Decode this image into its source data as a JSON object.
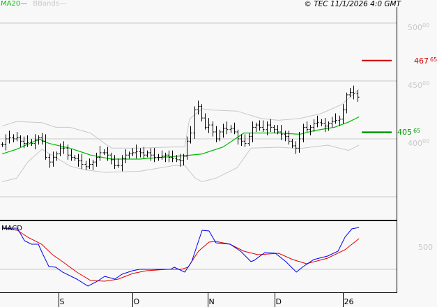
{
  "header": {
    "legend_ma": "MA20",
    "legend_bbands": "BBands",
    "copyright": "© TEC 11/1/2026 4:0 GMT"
  },
  "colors": {
    "ma": "#00bb00",
    "bands": "#c8c8c8",
    "bars": "#000000",
    "resistance": "#cc0000",
    "support": "#009900",
    "macd": "#0000ee",
    "signal": "#dd0000"
  },
  "levels": {
    "resistance": {
      "int": "467",
      "dec": "65",
      "value": 467.65
    },
    "support": {
      "int": "405",
      "dec": "65",
      "value": 405.65
    }
  },
  "macd_panel": {
    "label": "MACD",
    "axis_label": "500"
  },
  "chart_data": {
    "type": "ohlc",
    "price_axis": {
      "ticks": [
        {
          "int": "500",
          "dec": "00",
          "value": 500
        },
        {
          "int": "450",
          "dec": "00",
          "value": 450
        },
        {
          "int": "400",
          "dec": "00",
          "value": 400
        }
      ],
      "gridlines": [
        500,
        450,
        400,
        350
      ],
      "range": [
        325,
        510
      ]
    },
    "x_axis": {
      "labels": [
        {
          "text": "S",
          "bar": 15.6
        },
        {
          "text": "O",
          "bar": 36
        },
        {
          "text": "N",
          "bar": 56.7
        },
        {
          "text": "D",
          "bar": 75.2
        },
        {
          "text": "26",
          "bar": 94
        }
      ]
    },
    "closes": [
      395,
      400,
      401,
      400,
      401,
      398,
      396,
      397,
      396,
      399,
      401,
      398,
      384,
      380,
      384,
      387,
      392,
      392,
      386,
      384,
      383,
      381,
      378,
      376,
      378,
      380,
      384,
      388,
      388,
      386,
      382,
      377,
      377,
      383,
      386,
      387,
      388,
      389,
      388,
      386,
      388,
      386,
      384,
      384,
      385,
      386,
      384,
      383,
      382,
      381,
      385,
      398,
      405,
      425,
      428,
      418,
      410,
      412,
      406,
      400,
      406,
      409,
      408,
      409,
      406,
      400,
      398,
      396,
      402,
      410,
      412,
      410,
      408,
      412,
      410,
      408,
      406,
      404,
      402,
      398,
      394,
      392,
      400,
      410,
      408,
      410,
      413,
      414,
      413,
      411,
      413,
      415,
      416,
      417,
      425,
      438,
      440,
      439,
      436
    ],
    "ma20": [
      [
        0,
        387
      ],
      [
        4,
        391
      ],
      [
        9,
        398
      ],
      [
        10.4,
        399.5
      ],
      [
        13,
        396
      ],
      [
        18.7,
        392
      ],
      [
        24.4,
        386
      ],
      [
        30.2,
        382.5
      ],
      [
        37.9,
        382.5
      ],
      [
        43.7,
        384
      ],
      [
        50.4,
        385.5
      ],
      [
        55.2,
        387
      ],
      [
        61,
        393
      ],
      [
        66.7,
        405
      ],
      [
        70.6,
        405
      ],
      [
        76.3,
        405
      ],
      [
        82.1,
        404
      ],
      [
        86,
        407
      ],
      [
        91.7,
        410
      ],
      [
        95.6,
        414.5
      ],
      [
        98.5,
        419
      ]
    ],
    "bb_upper": [
      [
        0,
        411
      ],
      [
        4,
        415
      ],
      [
        11,
        414
      ],
      [
        14.8,
        410
      ],
      [
        18.7,
        410
      ],
      [
        24.4,
        405
      ],
      [
        28.3,
        396
      ],
      [
        30.2,
        392
      ],
      [
        37.9,
        392
      ],
      [
        47.5,
        393
      ],
      [
        50.4,
        393
      ],
      [
        51.7,
        417
      ],
      [
        55.2,
        426
      ],
      [
        57.1,
        425
      ],
      [
        64.8,
        424
      ],
      [
        71.5,
        417.5
      ],
      [
        76.3,
        416
      ],
      [
        82.1,
        417.5
      ],
      [
        87.9,
        421.7
      ],
      [
        93.7,
        429.5
      ],
      [
        98.5,
        443
      ]
    ],
    "bb_lower": [
      [
        0,
        363
      ],
      [
        4,
        366
      ],
      [
        7.1,
        380
      ],
      [
        11,
        391
      ],
      [
        14.8,
        384
      ],
      [
        18.7,
        376.5
      ],
      [
        22.5,
        373.5
      ],
      [
        28.3,
        371
      ],
      [
        37.9,
        372
      ],
      [
        47.5,
        377
      ],
      [
        50.4,
        377
      ],
      [
        53.3,
        366
      ],
      [
        55.2,
        363
      ],
      [
        59,
        366
      ],
      [
        64.8,
        375
      ],
      [
        68.7,
        392
      ],
      [
        76.3,
        392.8
      ],
      [
        82.1,
        391.6
      ],
      [
        89.8,
        394.6
      ],
      [
        95.6,
        390
      ],
      [
        98.5,
        394.6
      ]
    ],
    "macd": {
      "zero_line": 0,
      "macd_line": [
        [
          0,
          590
        ],
        [
          4.2,
          590
        ],
        [
          6.2,
          410
        ],
        [
          8.1,
          360
        ],
        [
          10,
          360
        ],
        [
          11.3,
          210
        ],
        [
          12.9,
          40
        ],
        [
          14.8,
          30
        ],
        [
          16.7,
          -40
        ],
        [
          20.6,
          -140
        ],
        [
          23.7,
          -240
        ],
        [
          26.3,
          -170
        ],
        [
          28.3,
          -100
        ],
        [
          31.1,
          -140
        ],
        [
          33.1,
          -70
        ],
        [
          36,
          -20
        ],
        [
          37.9,
          0
        ],
        [
          43.7,
          0
        ],
        [
          46.5,
          0
        ],
        [
          47.5,
          30
        ],
        [
          50.4,
          -40
        ],
        [
          52.3,
          110
        ],
        [
          55.2,
          560
        ],
        [
          57.1,
          550
        ],
        [
          59,
          380
        ],
        [
          62.9,
          360
        ],
        [
          65.8,
          260
        ],
        [
          68.7,
          110
        ],
        [
          69.6,
          130
        ],
        [
          72.5,
          240
        ],
        [
          75.4,
          230
        ],
        [
          78.3,
          110
        ],
        [
          81.2,
          -40
        ],
        [
          83.1,
          40
        ],
        [
          86,
          140
        ],
        [
          89.8,
          190
        ],
        [
          92.7,
          260
        ],
        [
          94.6,
          460
        ],
        [
          96.5,
          580
        ],
        [
          98.5,
          600
        ]
      ],
      "signal_line": [
        [
          0,
          590
        ],
        [
          4.2,
          560
        ],
        [
          7.1,
          460
        ],
        [
          10.9,
          360
        ],
        [
          13.9,
          210
        ],
        [
          16.7,
          110
        ],
        [
          20.6,
          -40
        ],
        [
          24.4,
          -160
        ],
        [
          28.3,
          -170
        ],
        [
          32.1,
          -140
        ],
        [
          36,
          -60
        ],
        [
          39.8,
          -20
        ],
        [
          45.6,
          0
        ],
        [
          49.4,
          0
        ],
        [
          51.3,
          30
        ],
        [
          54.2,
          260
        ],
        [
          57.1,
          390
        ],
        [
          59,
          400
        ],
        [
          62.9,
          360
        ],
        [
          66.7,
          260
        ],
        [
          70.6,
          210
        ],
        [
          76.3,
          230
        ],
        [
          80.2,
          140
        ],
        [
          84,
          80
        ],
        [
          89.8,
          160
        ],
        [
          94.6,
          280
        ],
        [
          98.5,
          440
        ]
      ]
    }
  }
}
